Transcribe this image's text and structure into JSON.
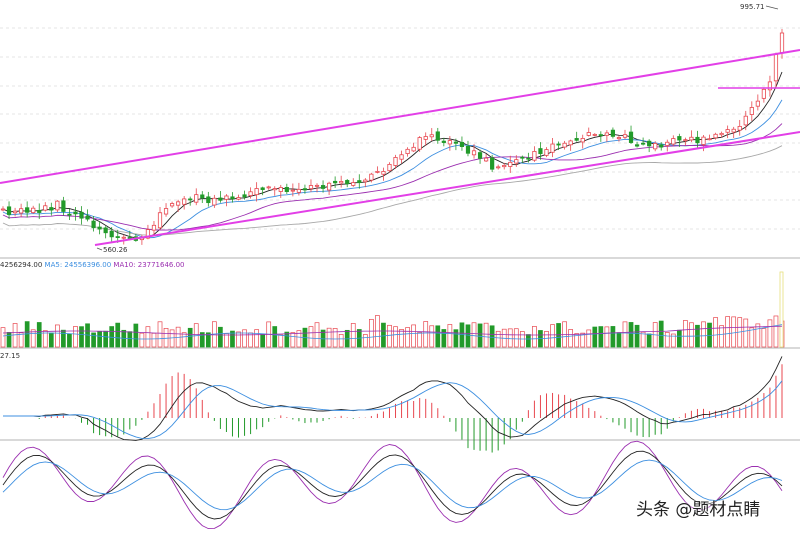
{
  "colors": {
    "up": "#e8474f",
    "down": "#229a2a",
    "channel": "#e23fe7",
    "ma5": "#222222",
    "ma10": "#3d8fe0",
    "ma20": "#9b2fb0",
    "ma60": "#a8a8a8",
    "grid": "#c9c9c9"
  },
  "legend": {
    "vol": "4256294.00",
    "ma5": "MA5: 24556396.00",
    "ma10": "MA10: 23771646.00"
  },
  "macd_label": "27.15",
  "watermark": "头条 @题材点睛",
  "chart_data": [
    {
      "type": "candlestick",
      "title": "",
      "annotations": {
        "high": "995.71",
        "low": "560.26"
      },
      "ylim": [
        520,
        1010
      ],
      "channel_lines": true,
      "grid": "dashed horizontal",
      "candle_count": 130
    },
    {
      "type": "bar",
      "title": "",
      "series": [
        {
          "name": "4256294.00"
        },
        {
          "name": "MA5: 24556396.00"
        },
        {
          "name": "MA10: 23771646.00"
        }
      ]
    },
    {
      "type": "bar",
      "title": "",
      "note": "MACD histogram with DIF/DEA lines"
    },
    {
      "type": "line",
      "title": "",
      "note": "KDJ oscillator"
    }
  ]
}
